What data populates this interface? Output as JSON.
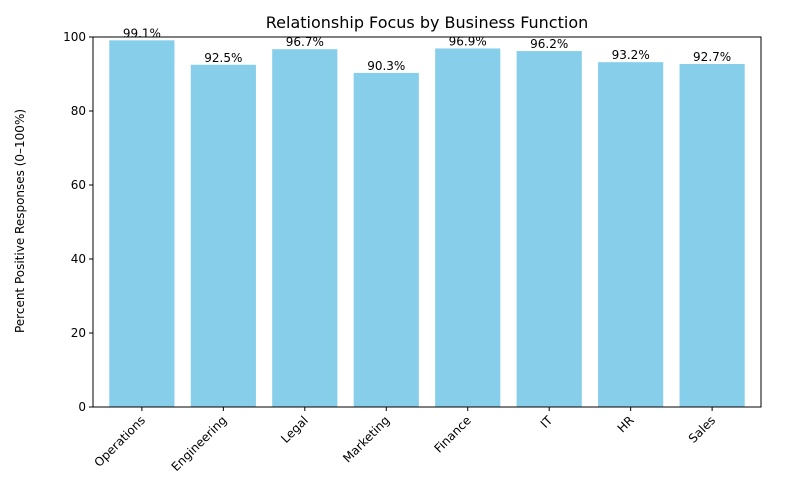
{
  "chart_data": {
    "type": "bar",
    "title": "Relationship Focus by Business Function",
    "xlabel": "",
    "ylabel": "Percent Positive Responses (0–100%)",
    "ylim": [
      0,
      100
    ],
    "yticks": [
      0,
      20,
      40,
      60,
      80,
      100
    ],
    "grid": false,
    "legend": "none",
    "bar_color": "#87CEEB",
    "categories": [
      "Operations",
      "Engineering",
      "Legal",
      "Marketing",
      "Finance",
      "IT",
      "HR",
      "Sales"
    ],
    "values": [
      99.1,
      92.5,
      96.7,
      90.3,
      96.9,
      96.2,
      93.2,
      92.7
    ],
    "value_labels": [
      "99.1%",
      "92.5%",
      "96.7%",
      "90.3%",
      "96.9%",
      "96.2%",
      "93.2%",
      "92.7%"
    ]
  }
}
